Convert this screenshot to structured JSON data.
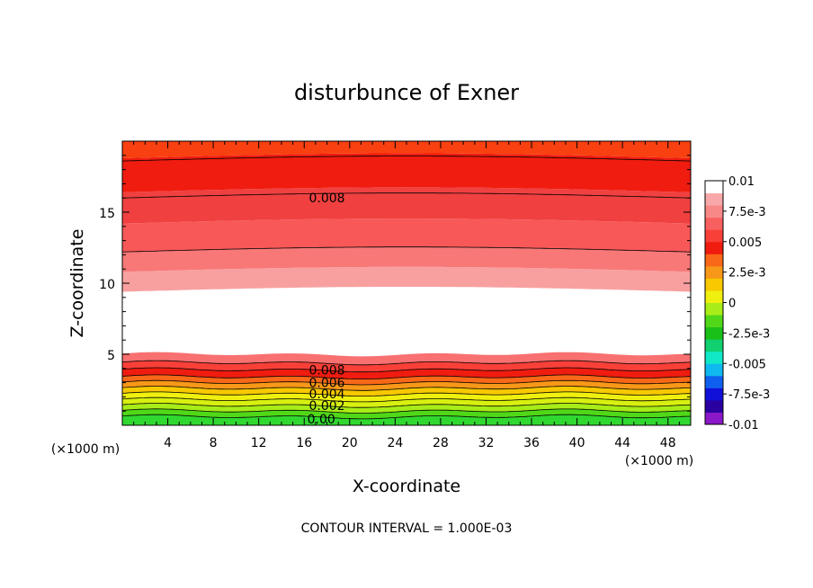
{
  "chart_data": {
    "type": "heatmap",
    "title": "disturbunce of Exner",
    "xlabel": "X-coordinate",
    "ylabel": "Z-coordinate",
    "x_unit_left": "(×1000 m)",
    "x_unit_right": "(×1000 m)",
    "footer": "CONTOUR INTERVAL = 1.000E-03",
    "xlim": [
      0,
      50
    ],
    "ylim": [
      0,
      20
    ],
    "x_ticks": [
      4,
      8,
      12,
      16,
      20,
      24,
      28,
      32,
      36,
      40,
      44,
      48
    ],
    "y_ticks": [
      5,
      10,
      15
    ],
    "grid": false,
    "colorbar": {
      "placement": "right",
      "range": [
        -0.01,
        0.01
      ],
      "labels": [
        "0.01",
        "7.5e-3",
        "0.005",
        "2.5e-3",
        "0",
        "-2.5e-3",
        "-0.005",
        "-7.5e-3",
        "-0.01"
      ],
      "label_values": [
        0.01,
        0.0075,
        0.005,
        0.0025,
        0,
        -0.0025,
        -0.005,
        -0.0075,
        -0.01
      ],
      "colors": [
        "#8a18c8",
        "#2a00a0",
        "#1010d8",
        "#1060f0",
        "#10b8f0",
        "#10e8c8",
        "#10d070",
        "#18c018",
        "#50d818",
        "#a8ec18",
        "#f0f010",
        "#f8c800",
        "#f89818",
        "#f86818",
        "#f01c10",
        "#f84038",
        "#f86060",
        "#f88888",
        "#f8a8a8",
        "#ffffff"
      ]
    },
    "regions": [
      {
        "z_bottom": 0.0,
        "z_top": 0.6,
        "value": 0.0,
        "color": "#30d830"
      },
      {
        "z_bottom": 0.6,
        "z_top": 1.0,
        "value": 0.001,
        "color": "#50d818"
      },
      {
        "z_bottom": 1.0,
        "z_top": 1.4,
        "value": 0.002,
        "color": "#a8ec18"
      },
      {
        "z_bottom": 1.4,
        "z_top": 1.8,
        "value": 0.0025,
        "color": "#d8f010"
      },
      {
        "z_bottom": 1.8,
        "z_top": 2.2,
        "value": 0.003,
        "color": "#f0f010"
      },
      {
        "z_bottom": 2.2,
        "z_top": 2.6,
        "value": 0.004,
        "color": "#f8c800"
      },
      {
        "z_bottom": 2.6,
        "z_top": 3.0,
        "value": 0.005,
        "color": "#f89818"
      },
      {
        "z_bottom": 3.0,
        "z_top": 3.4,
        "value": 0.006,
        "color": "#f86818"
      },
      {
        "z_bottom": 3.4,
        "z_top": 3.9,
        "value": 0.007,
        "color": "#f01c10"
      },
      {
        "z_bottom": 3.9,
        "z_top": 4.4,
        "value": 0.008,
        "color": "#f84038"
      },
      {
        "z_bottom": 4.4,
        "z_top": 5.0,
        "value": 0.0085,
        "color": "#f87070"
      },
      {
        "z_bottom": 9.4,
        "z_top": 10.8,
        "value": 0.0095,
        "color": "#f8a0a0"
      },
      {
        "z_bottom": 10.8,
        "z_top": 12.2,
        "value": 0.009,
        "color": "#f87878"
      },
      {
        "z_bottom": 12.2,
        "z_top": 14.2,
        "value": 0.0085,
        "color": "#f85858"
      },
      {
        "z_bottom": 14.2,
        "z_top": 16.4,
        "value": 0.008,
        "color": "#f04040"
      },
      {
        "z_bottom": 16.4,
        "z_top": 18.8,
        "value": 0.0075,
        "color": "#f01c10"
      },
      {
        "z_bottom": 18.8,
        "z_top": 20.0,
        "value": 0.007,
        "color": "#f84010"
      }
    ],
    "contour_lines": [
      {
        "z": 0.6
      },
      {
        "z": 1.0
      },
      {
        "z": 1.4
      },
      {
        "z": 1.8
      },
      {
        "z": 2.2
      },
      {
        "z": 2.6
      },
      {
        "z": 3.0
      },
      {
        "z": 3.4
      },
      {
        "z": 3.9
      },
      {
        "z": 4.4
      },
      {
        "z": 12.2
      },
      {
        "z": 16.0
      },
      {
        "z": 18.6
      }
    ],
    "contour_labels": [
      {
        "text": "0.008",
        "x": 18,
        "z": 16.0
      },
      {
        "text": "0.008",
        "x": 18,
        "z": 3.9
      },
      {
        "text": "0.006",
        "x": 18,
        "z": 3.0
      },
      {
        "text": "0.004",
        "x": 18,
        "z": 2.2
      },
      {
        "text": "0.002",
        "x": 18,
        "z": 1.4
      },
      {
        "text": "0.00",
        "x": 17.5,
        "z": 0.45
      }
    ]
  }
}
